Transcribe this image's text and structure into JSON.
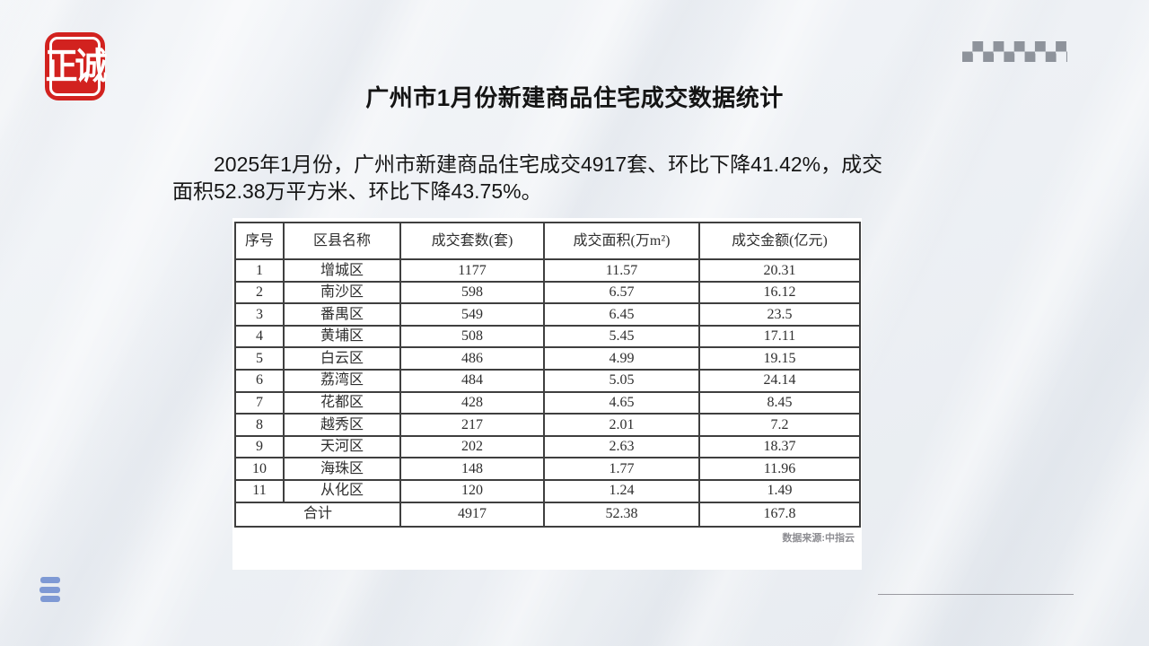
{
  "logo": {
    "text": "正诚"
  },
  "title": "广州市1月份新建商品住宅成交数据统计",
  "paragraph": {
    "line1": "2025年1月份，广州市新建商品住宅成交4917套、环比下降41.42%，成交",
    "line2": "面积52.38万平方米、环比下降43.75%。"
  },
  "table": {
    "headers": [
      "序号",
      "区县名称",
      "成交套数(套)",
      "成交面积(万m²)",
      "成交金额(亿元)"
    ],
    "rows": [
      [
        "1",
        "增城区",
        "1177",
        "11.57",
        "20.31"
      ],
      [
        "2",
        "南沙区",
        "598",
        "6.57",
        "16.12"
      ],
      [
        "3",
        "番禺区",
        "549",
        "6.45",
        "23.5"
      ],
      [
        "4",
        "黄埔区",
        "508",
        "5.45",
        "17.11"
      ],
      [
        "5",
        "白云区",
        "486",
        "4.99",
        "19.15"
      ],
      [
        "6",
        "荔湾区",
        "484",
        "5.05",
        "24.14"
      ],
      [
        "7",
        "花都区",
        "428",
        "4.65",
        "8.45"
      ],
      [
        "8",
        "越秀区",
        "217",
        "2.01",
        "7.2"
      ],
      [
        "9",
        "天河区",
        "202",
        "2.63",
        "18.37"
      ],
      [
        "10",
        "海珠区",
        "148",
        "1.77",
        "11.96"
      ],
      [
        "11",
        "从化区",
        "120",
        "1.24",
        "1.49"
      ]
    ],
    "total": [
      "合计",
      "4917",
      "52.38",
      "167.8"
    ]
  },
  "source_note": "数据来源:中指云",
  "colors": {
    "logo_red": "#d2221f",
    "checker_gray": "#8e939b",
    "menu_bar_blue": "#7e99d4",
    "table_border": "#3f3f3f",
    "background": "#eef1f5"
  }
}
